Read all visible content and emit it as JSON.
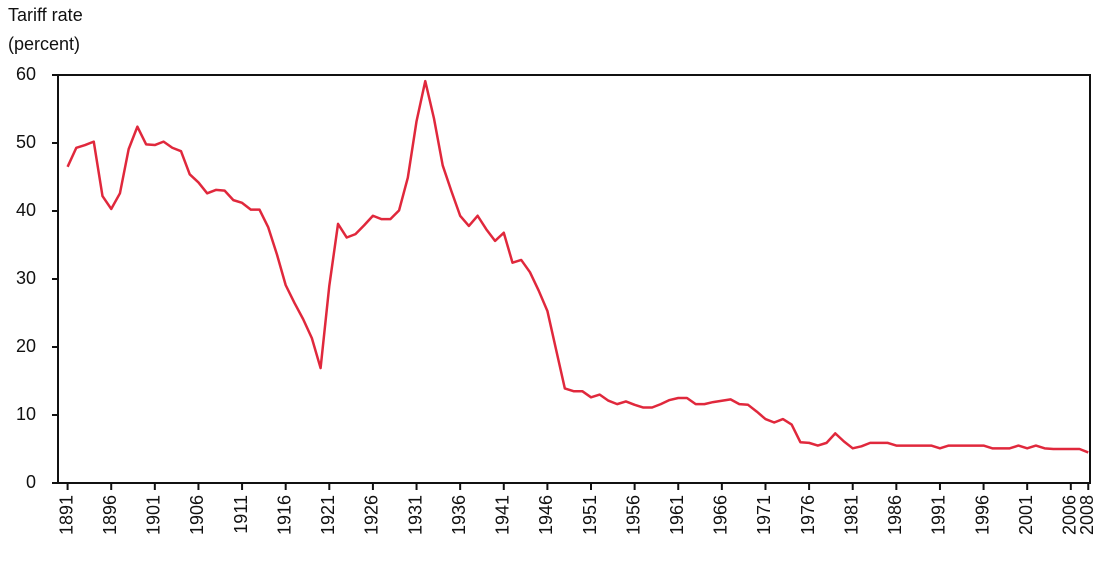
{
  "chart_data": {
    "type": "line",
    "ylabel": [
      "Tariff rate",
      "(percent)"
    ],
    "x": [
      1891,
      1892,
      1893,
      1894,
      1895,
      1896,
      1897,
      1898,
      1899,
      1900,
      1901,
      1902,
      1903,
      1904,
      1905,
      1906,
      1907,
      1908,
      1909,
      1910,
      1911,
      1912,
      1913,
      1914,
      1915,
      1916,
      1917,
      1918,
      1919,
      1920,
      1921,
      1922,
      1923,
      1924,
      1925,
      1926,
      1927,
      1928,
      1929,
      1930,
      1931,
      1932,
      1933,
      1934,
      1935,
      1936,
      1937,
      1938,
      1939,
      1940,
      1941,
      1942,
      1943,
      1944,
      1945,
      1946,
      1947,
      1948,
      1949,
      1950,
      1951,
      1952,
      1953,
      1954,
      1955,
      1956,
      1957,
      1958,
      1959,
      1960,
      1961,
      1962,
      1963,
      1964,
      1965,
      1966,
      1967,
      1968,
      1969,
      1970,
      1971,
      1972,
      1973,
      1974,
      1975,
      1976,
      1977,
      1978,
      1979,
      1980,
      1981,
      1982,
      1983,
      1984,
      1985,
      1986,
      1987,
      1988,
      1989,
      1990,
      1991,
      1992,
      1993,
      1994,
      1995,
      1996,
      1997,
      1998,
      1999,
      2000,
      2001,
      2002,
      2003,
      2004,
      2005,
      2006,
      2007,
      2008
    ],
    "series": [
      {
        "color": "#e0283c",
        "values": [
          46.5,
          49.3,
          49.7,
          50.2,
          42.2,
          40.3,
          42.6,
          49.1,
          52.4,
          49.8,
          49.7,
          50.2,
          49.3,
          48.8,
          45.4,
          44.2,
          42.6,
          43.1,
          43.0,
          41.6,
          41.2,
          40.2,
          40.2,
          37.6,
          33.6,
          29.1,
          26.5,
          24.1,
          21.3,
          16.9,
          29.0,
          38.1,
          36.1,
          36.6,
          37.9,
          39.3,
          38.8,
          38.8,
          40.1,
          44.9,
          53.2,
          59.1,
          53.6,
          46.7,
          42.9,
          39.3,
          37.8,
          39.3,
          37.3,
          35.6,
          36.8,
          32.4,
          32.8,
          31.0,
          28.3,
          25.3,
          19.6,
          13.9,
          13.5,
          13.5,
          12.6,
          13.0,
          12.1,
          11.6,
          12.0,
          11.5,
          11.1,
          11.1,
          11.6,
          12.2,
          12.5,
          12.5,
          11.6,
          11.6,
          11.9,
          12.1,
          12.3,
          11.6,
          11.5,
          10.5,
          9.4,
          8.9,
          9.4,
          8.6,
          6.0,
          5.9,
          5.5,
          5.9,
          7.3,
          6.1,
          5.1,
          5.4,
          5.9,
          5.9,
          5.9,
          5.5,
          5.5,
          5.5,
          5.5,
          5.5,
          5.1,
          5.5,
          5.5,
          5.5,
          5.5,
          5.5,
          5.1,
          5.1,
          5.1,
          5.5,
          5.1,
          5.5,
          5.1,
          5.0,
          5.0,
          5.0,
          5.0,
          4.5
        ]
      }
    ],
    "xlim": [
      1889.9,
      2008.2
    ],
    "xticks": [
      1891,
      1896,
      1901,
      1906,
      1911,
      1916,
      1921,
      1926,
      1931,
      1936,
      1941,
      1946,
      1951,
      1956,
      1961,
      1966,
      1971,
      1976,
      1981,
      1986,
      1991,
      1996,
      2001,
      2006,
      2008
    ],
    "ylim": [
      0,
      60
    ],
    "yticks": [
      0,
      10,
      20,
      30,
      40,
      50,
      60
    ],
    "grid": false
  }
}
